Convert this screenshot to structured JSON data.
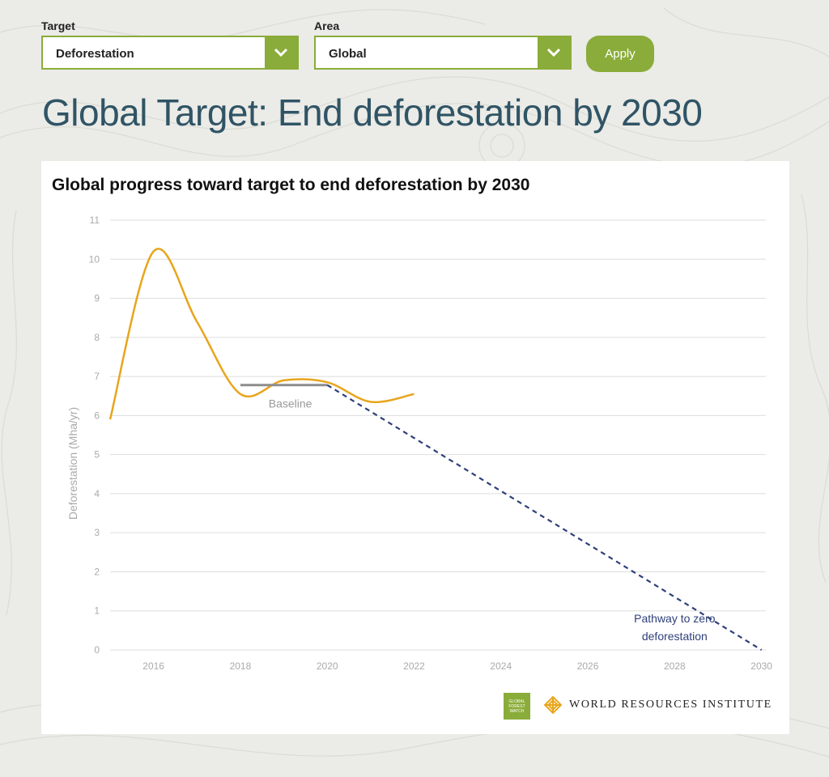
{
  "controls": {
    "target": {
      "label": "Target",
      "value": "Deforestation"
    },
    "area": {
      "label": "Area",
      "value": "Global"
    },
    "apply_label": "Apply"
  },
  "page_title": "Global Target: End deforestation by 2030",
  "colors": {
    "accent_green": "#8aac3a",
    "title_blue": "#2f5465",
    "actual_line": "#e8a51c",
    "baseline": "#8d8d8d",
    "pathway": "#2e3f7a",
    "gridline": "#dedede",
    "axis_text": "#aaaaaa"
  },
  "logos": {
    "gfw": [
      "GLOBAL",
      "FOREST",
      "WATCH"
    ],
    "wri": "WORLD RESOURCES INSTITUTE"
  },
  "chart_data": {
    "type": "line",
    "title": "Global progress toward target to end deforestation by 2030",
    "ylabel": "Deforestation (Mha/yr)",
    "xlabel": "",
    "xlim": [
      2015,
      2030.1
    ],
    "ylim": [
      0,
      11
    ],
    "xticks": [
      2016,
      2018,
      2020,
      2022,
      2024,
      2026,
      2028,
      2030
    ],
    "yticks": [
      0,
      1,
      2,
      3,
      4,
      5,
      6,
      7,
      8,
      9,
      10,
      11
    ],
    "grid": true,
    "series": [
      {
        "style": "solid-curve",
        "x": [
          2015,
          2016,
          2017,
          2018,
          2019,
          2020,
          2021,
          2022
        ],
        "y": [
          5.9,
          10.2,
          8.4,
          6.55,
          6.9,
          6.85,
          6.35,
          6.55
        ]
      },
      {
        "name": "Baseline",
        "style": "solid-line",
        "x": [
          2018,
          2020
        ],
        "y": [
          6.78,
          6.78
        ]
      },
      {
        "name": "Pathway to zero deforestation",
        "style": "dashed-line",
        "x": [
          2020,
          2030
        ],
        "y": [
          6.78,
          0
        ]
      }
    ],
    "annotations": [
      {
        "text": "Baseline",
        "x": 2019.15,
        "y": 6.2
      },
      {
        "text": "Pathway to zero",
        "x": 2028.0,
        "y": 0.7
      },
      {
        "text": "deforestation",
        "x": 2028.0,
        "y": 0.25
      }
    ]
  }
}
